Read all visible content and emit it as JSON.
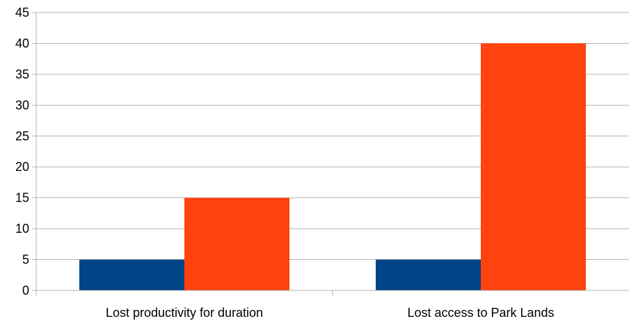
{
  "chart_data": {
    "type": "bar",
    "categories": [
      "Lost productivity for duration",
      "Lost access to Park Lands"
    ],
    "series": [
      {
        "color": "#004586",
        "values": [
          5,
          5
        ]
      },
      {
        "color": "#ff420e",
        "values": [
          15,
          40
        ]
      }
    ],
    "ylim": [
      0,
      45
    ],
    "yticks": [
      0,
      5,
      10,
      15,
      20,
      25,
      30,
      35,
      40,
      45
    ],
    "grid": true,
    "legend": "none"
  }
}
